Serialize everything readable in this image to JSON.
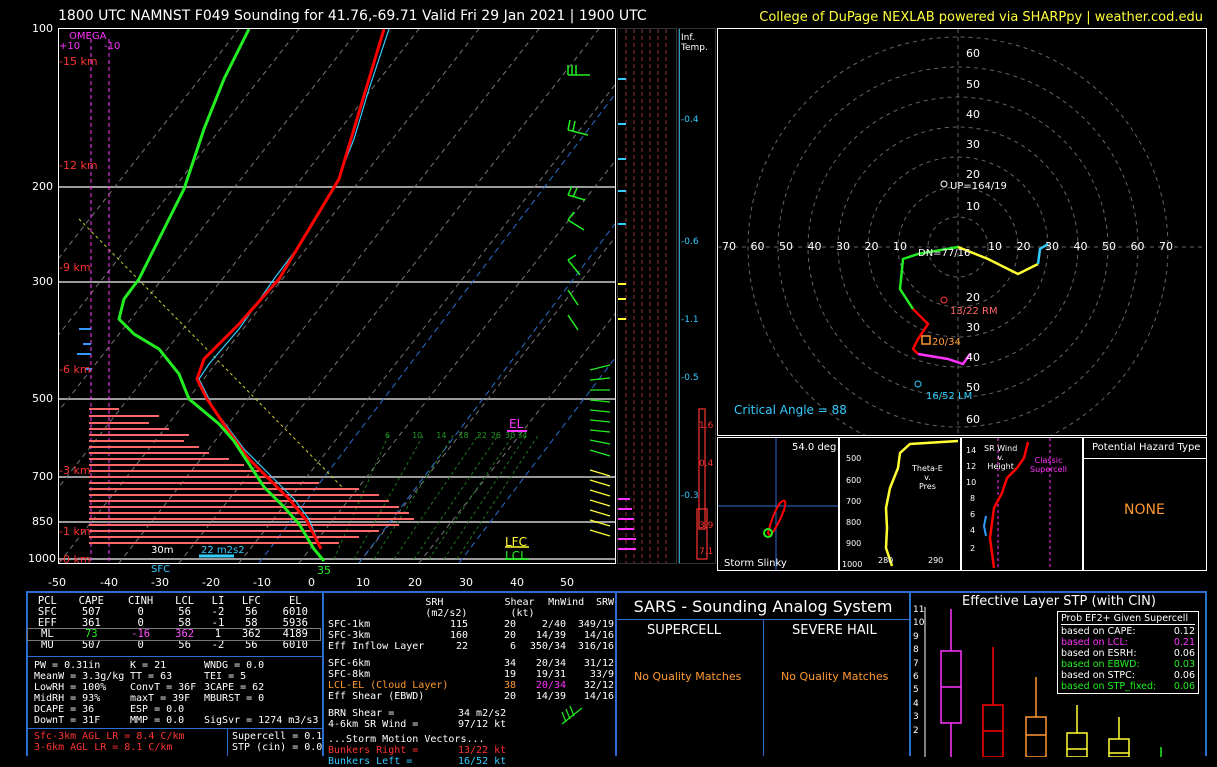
{
  "header": {
    "title": "1800 UTC NAMNST F049 Sounding for 41.76,-69.71 Valid  Fri 29 Jan 2021 | 1900 UTC",
    "credit": "College of DuPage NEXLAB powered via SHARPpy | weather.cod.edu"
  },
  "skewt": {
    "pressure_labels": [
      "100",
      "200",
      "300",
      "500",
      "700",
      "850",
      "1000"
    ],
    "temp_ticks": [
      "-50",
      "-40",
      "-30",
      "-20",
      "-10",
      "0",
      "10",
      "20",
      "30",
      "40",
      "50"
    ],
    "height_labels": [
      "15 km",
      "12 km",
      "9 km",
      "6 km",
      "3 km",
      "1 km",
      "0 km"
    ],
    "omega_label": "OMEGA",
    "omega_left": "+10",
    "omega_right": "-10",
    "el": "EL",
    "lfc": "LFC",
    "lcl": "LCL",
    "sfc": "SFC",
    "surface_temp": "35",
    "bottom_30m": "30m",
    "bottom_m2s2": "22 m2s2",
    "mix_ticks": [
      "6",
      "10",
      "14",
      "18",
      "22",
      "26",
      "30",
      "34"
    ]
  },
  "inf_temp": {
    "label": "Inf.\nTemp.",
    "ticks": [
      "-0.4",
      "-0.6",
      "-1.1",
      "-0.5",
      "-0.3"
    ],
    "red_vals": [
      "1.6",
      "0.4",
      "3.9",
      "7.1"
    ]
  },
  "hodograph": {
    "rings": [
      "60",
      "50",
      "40",
      "30",
      "20",
      "10"
    ],
    "x_ticks": [
      "70",
      "60",
      "50",
      "40",
      "30",
      "20",
      "10",
      "10",
      "20",
      "30",
      "40",
      "50",
      "60",
      "70"
    ],
    "up": "UP=164/19",
    "dn": "DN=77/16",
    "rm": "13/22 RM",
    "lm": "16/52 LM",
    "mean": "20/34",
    "critical_angle": "Critical Angle = 88"
  },
  "slinky": {
    "deg": "54.0 deg",
    "label": "Storm Slinky"
  },
  "theta": {
    "title": "Theta-E\nv.\nPres",
    "p_ticks": [
      "500",
      "600",
      "700",
      "800",
      "900",
      "1000"
    ],
    "x_ticks": [
      "280",
      "290"
    ]
  },
  "srwind": {
    "title": "SR Wind\nv.\nHeight",
    "h_ticks": [
      "14",
      "12",
      "10",
      "8",
      "6",
      "4",
      "2"
    ],
    "supercell": "Classic\nSupercell"
  },
  "hazard": {
    "title": "Potential Hazard Type",
    "value": "NONE"
  },
  "parcels": {
    "headers": [
      "PCL",
      "CAPE",
      "CINH",
      "LCL",
      "LI",
      "LFC",
      "EL"
    ],
    "rows": [
      [
        "SFC",
        "507",
        "0",
        "56",
        "-2",
        "56",
        "6010"
      ],
      [
        "EFF",
        "361",
        "0",
        "58",
        "-1",
        "58",
        "5936"
      ],
      [
        "ML",
        "73",
        "-16",
        "362",
        "1",
        "362",
        "4189"
      ],
      [
        "MU",
        "507",
        "0",
        "56",
        "-2",
        "56",
        "6010"
      ]
    ]
  },
  "indices": [
    [
      "PW = 0.31in",
      "K = 21",
      "WNDG = 0.0"
    ],
    [
      "MeanW = 3.3g/kg",
      "TT = 63",
      "TEI = 5"
    ],
    [
      "LowRH = 100%",
      "ConvT = 36F",
      "3CAPE = 62"
    ],
    [
      "MidRH = 93%",
      "maxT = 39F",
      "MBURST = 0"
    ],
    [
      "DCAPE = 36",
      "ESP = 0.0",
      ""
    ],
    [
      "DownT = 31F",
      "MMP = 0.0",
      "SigSvr = 1274 m3/s3"
    ]
  ],
  "lapse": [
    "Sfc-3km AGL LR = 8.4 C/km",
    "3-6km AGL LR = 8.1 C/km"
  ],
  "supercell_stp": [
    "Supercell = 0.1",
    "STP (cin) = 0.0"
  ],
  "kinematics": {
    "headers": [
      "SRH (m2/s2)",
      "Shear (kt)",
      "MnWind",
      "SRW"
    ],
    "rows": [
      [
        "SFC-1km",
        "115",
        "20",
        "2/40",
        "349/19"
      ],
      [
        "SFC-3km",
        "160",
        "20",
        "14/39",
        "14/16"
      ],
      [
        "Eff Inflow Layer",
        "22",
        "6",
        "350/34",
        "316/16"
      ],
      [
        "SFC-6km",
        "34",
        "20/34",
        "31/12"
      ],
      [
        "SFC-8km",
        "19",
        "19/31",
        "33/9"
      ],
      [
        "LCL-EL (Cloud Layer)",
        "38",
        "20/34",
        "32/12"
      ],
      [
        "Eff Shear (EBWD)",
        "20",
        "14/39",
        "14/16"
      ]
    ],
    "brn_label": "BRN Shear =",
    "brn_val": "34 m2/s2",
    "sr4_6_label": "4-6km SR Wind =",
    "sr4_6_val": "97/12 kt",
    "motion": "...Storm Motion Vectors...",
    "bunkers_right_label": "Bunkers Right =",
    "bunkers_right_val": "13/22 kt",
    "bunkers_left_label": "Bunkers Left =",
    "bunkers_left_val": "16/52 kt"
  },
  "sars": {
    "title": "SARS - Sounding Analog System",
    "supercell": "SUPERCELL",
    "hail": "SEVERE HAIL",
    "no_match_1": "No Quality Matches",
    "no_match_2": "No Quality Matches"
  },
  "stp": {
    "title": "Effective Layer STP (with CIN)",
    "y_ticks": [
      "11",
      "10",
      "9",
      "8",
      "7",
      "6",
      "5",
      "4",
      "3",
      "2"
    ],
    "box_title": "Prob EF2+ Given Supercell",
    "rows": [
      [
        "based on CAPE:",
        "0.12"
      ],
      [
        "based on LCL:",
        "0.21"
      ],
      [
        "based on ESRH:",
        "0.06"
      ],
      [
        "based on EBWD:",
        "0.03"
      ],
      [
        "based on STPC:",
        "0.06"
      ],
      [
        "based on STP_fixed:",
        "0.06"
      ]
    ],
    "row_colors": [
      "#ffffff",
      "#ff33ff",
      "#ffffff",
      "#22ff22",
      "#ffffff",
      "#22ff22"
    ]
  },
  "colors": {
    "temp": "#ff0000",
    "dew": "#22ee22",
    "yellow": "#ffff33",
    "cyan": "#33ccff",
    "magenta": "#ff33ff",
    "orange": "#ff9933"
  }
}
